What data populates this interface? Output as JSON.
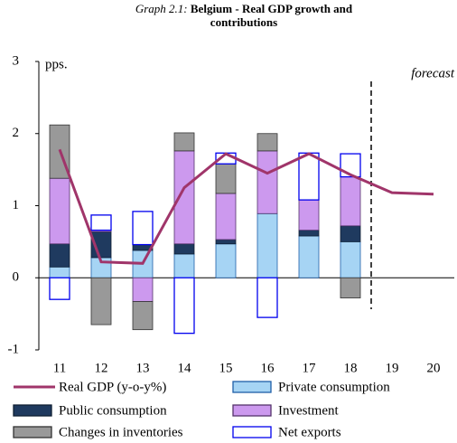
{
  "chart_data": {
    "type": "stacked-bar-line",
    "title_label": "Graph 2.1:",
    "title": "Belgium - Real GDP growth and contributions",
    "y_label": "pps.",
    "annotation": "forecast",
    "categories": [
      "11",
      "12",
      "13",
      "14",
      "15",
      "16",
      "17",
      "18",
      "19",
      "20"
    ],
    "ylim": [
      -1,
      3
    ],
    "yticks": [
      -1,
      0,
      1,
      2,
      3
    ],
    "series": [
      {
        "name": "Private consumption",
        "color": "#a6d4f4",
        "border": "#1f5fa8",
        "values": [
          0.15,
          0.28,
          0.38,
          0.33,
          0.47,
          0.89,
          0.58,
          0.5,
          null,
          null
        ]
      },
      {
        "name": "Public consumption",
        "color": "#1f3a5f",
        "border": "#0f1f33",
        "values": [
          0.32,
          0.36,
          0.08,
          0.14,
          0.06,
          0,
          0.08,
          0.22,
          null,
          null
        ]
      },
      {
        "name": "Investment",
        "color": "#cc99ee",
        "border": "#55336b",
        "values": [
          0.91,
          0.02,
          -0.33,
          1.29,
          0.64,
          0.87,
          0.42,
          0.68,
          null,
          null
        ]
      },
      {
        "name": "Changes in inventories",
        "color": "#999999",
        "border": "#333333",
        "values": [
          0.74,
          -0.65,
          -0.39,
          0.25,
          0.41,
          0.24,
          0,
          -0.28,
          null,
          null
        ]
      },
      {
        "name": "Net exports",
        "color": "#ffffff",
        "border": "#0000ee",
        "values": [
          -0.3,
          0.21,
          0.46,
          -0.77,
          0.15,
          -0.55,
          0.65,
          0.32,
          null,
          null
        ]
      }
    ],
    "line": {
      "name": "Real GDP (y-o-y%)",
      "color": "#a0356a",
      "values": [
        1.78,
        0.22,
        0.2,
        1.25,
        1.72,
        1.45,
        1.72,
        1.43,
        1.18,
        1.16
      ]
    }
  }
}
